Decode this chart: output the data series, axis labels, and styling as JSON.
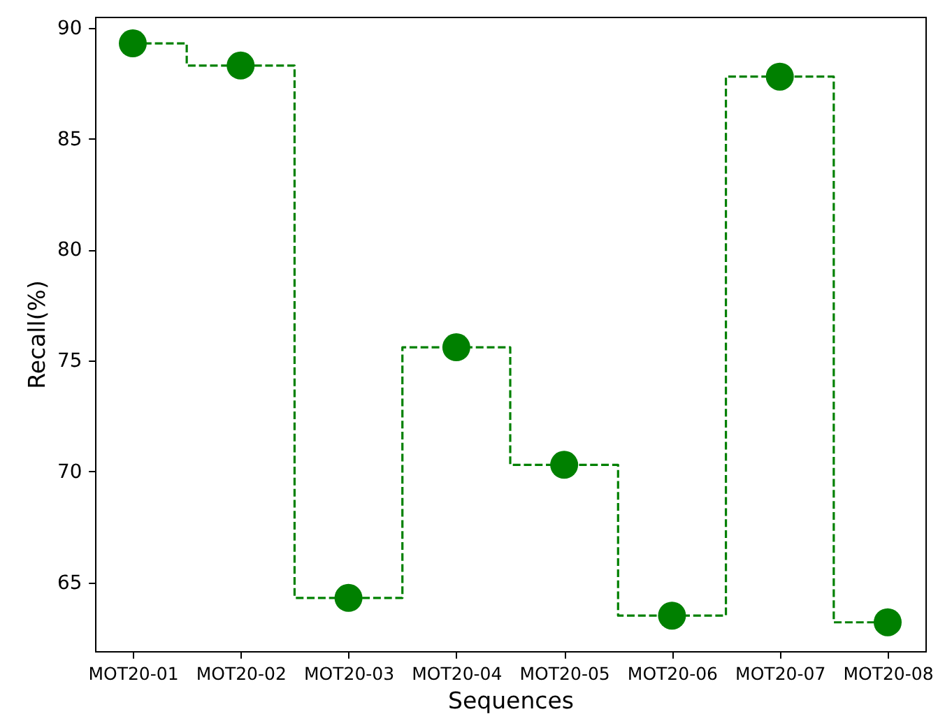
{
  "chart_data": {
    "type": "step",
    "xlabel": "Sequences",
    "ylabel": "Recall(%)",
    "categories": [
      "MOT20-01",
      "MOT20-02",
      "MOT20-03",
      "MOT20-04",
      "MOT20-05",
      "MOT20-06",
      "MOT20-07",
      "MOT20-08"
    ],
    "series": [
      {
        "color": "#008000",
        "values": [
          89.3,
          88.3,
          64.3,
          75.6,
          70.3,
          63.5,
          87.8,
          63.2
        ]
      }
    ],
    "ylim": [
      61.9,
      90.5
    ],
    "yticks": [
      65,
      70,
      75,
      80,
      85,
      90
    ],
    "grid": false,
    "marker": "circle",
    "line_style": "dashed"
  }
}
